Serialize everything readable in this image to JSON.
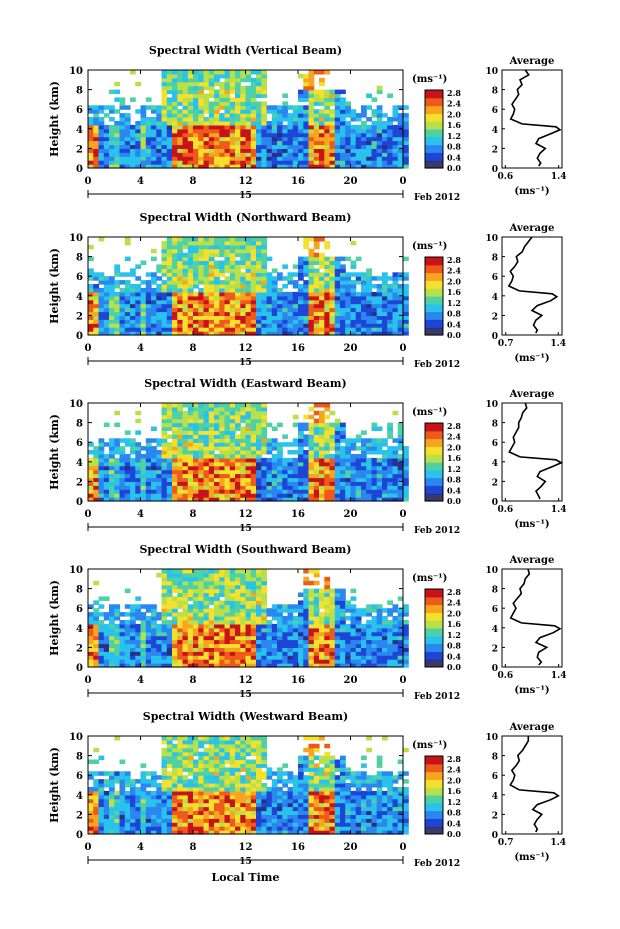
{
  "figure": {
    "xlabel": "Local Time",
    "date_label": "Feb 2012",
    "day_label": "15",
    "units_label": "(ms⁻¹)",
    "average_title": "Average",
    "average_xlabel": "(ms⁻¹)",
    "colorbar_ticks": [
      "2.8",
      "2.4",
      "2.0",
      "1.6",
      "1.2",
      "0.8",
      "0.4",
      "0.0"
    ],
    "colors": [
      "#2a2f8c",
      "#1e46d6",
      "#2c86ef",
      "#28c2ec",
      "#4fd1a6",
      "#b8e04a",
      "#f5e02d",
      "#f7a51f",
      "#ee5a1c",
      "#c8131b"
    ]
  },
  "chart_data": [
    {
      "type": "heatmap",
      "title": "Spectral Width (Vertical Beam)",
      "ylabel": "Height (km)",
      "xlabel": "",
      "xlim": [
        0,
        24
      ],
      "ylim": [
        0,
        10
      ],
      "xticks": [
        "0",
        "4",
        "8",
        "12",
        "16",
        "20",
        "0"
      ],
      "yticks": [
        "0",
        "2",
        "4",
        "6",
        "8",
        "10"
      ],
      "colorbar_range": [
        0.0,
        2.8
      ],
      "average_profile": {
        "title": "Average",
        "xlabel": "(ms⁻¹)",
        "xticks": [
          "0.6",
          "1.4"
        ],
        "yticks": [
          "0",
          "2",
          "4",
          "6",
          "8",
          "10"
        ],
        "heights": [
          0.2,
          0.5,
          1,
          1.5,
          2,
          2.5,
          3,
          3.5,
          3.9,
          4.2,
          4.5,
          5,
          5.5,
          6,
          6.5,
          7,
          7.5,
          8,
          8.5,
          9,
          9.5,
          10
        ],
        "values": [
          1.1,
          1.13,
          1.08,
          1.12,
          1.2,
          1.06,
          1.1,
          1.28,
          1.42,
          1.36,
          0.85,
          0.68,
          0.72,
          0.74,
          0.7,
          0.75,
          0.8,
          0.78,
          0.85,
          0.82,
          0.95,
          0.9
        ]
      }
    },
    {
      "type": "heatmap",
      "title": "Spectral Width (Northward Beam)",
      "ylabel": "Height (km)",
      "xlabel": "",
      "xlim": [
        0,
        24
      ],
      "ylim": [
        0,
        10
      ],
      "xticks": [
        "0",
        "4",
        "8",
        "12",
        "16",
        "20",
        "0"
      ],
      "yticks": [
        "0",
        "2",
        "4",
        "6",
        "8",
        "10"
      ],
      "colorbar_range": [
        0.0,
        2.8
      ],
      "average_profile": {
        "title": "Average",
        "xlabel": "(ms⁻¹)",
        "xticks": [
          "0.7",
          "1.4"
        ],
        "yticks": [
          "0",
          "2",
          "4",
          "6",
          "8",
          "10"
        ],
        "heights": [
          0.2,
          0.5,
          1,
          1.5,
          2,
          2.5,
          3,
          3.5,
          3.9,
          4.2,
          4.5,
          5,
          5.5,
          6,
          6.5,
          7,
          7.5,
          8,
          8.5,
          9,
          9.5,
          10
        ],
        "values": [
          1.1,
          1.12,
          1.07,
          1.1,
          1.18,
          1.05,
          1.12,
          1.3,
          1.38,
          1.32,
          0.88,
          0.74,
          0.78,
          0.8,
          0.76,
          0.82,
          0.86,
          0.84,
          0.92,
          0.95,
          1.0,
          1.05
        ]
      }
    },
    {
      "type": "heatmap",
      "title": "Spectral Width (Eastward Beam)",
      "ylabel": "Height (km)",
      "xlabel": "",
      "xlim": [
        0,
        24
      ],
      "ylim": [
        0,
        10
      ],
      "xticks": [
        "0",
        "4",
        "8",
        "12",
        "16",
        "20",
        "0"
      ],
      "yticks": [
        "0",
        "2",
        "4",
        "6",
        "8",
        "10"
      ],
      "colorbar_range": [
        0.0,
        2.8
      ],
      "average_profile": {
        "title": "Average",
        "xlabel": "(ms⁻¹)",
        "xticks": [
          "0.6",
          "1.4"
        ],
        "yticks": [
          "0",
          "2",
          "4",
          "6",
          "8",
          "10"
        ],
        "heights": [
          0.2,
          0.5,
          1,
          1.5,
          2,
          2.5,
          3,
          3.5,
          3.9,
          4.2,
          4.5,
          5,
          5.5,
          6,
          6.5,
          7,
          7.5,
          8,
          8.5,
          9,
          9.5,
          10
        ],
        "values": [
          1.12,
          1.1,
          1.06,
          1.14,
          1.2,
          1.08,
          1.12,
          1.3,
          1.44,
          1.36,
          0.82,
          0.66,
          0.7,
          0.74,
          0.72,
          0.76,
          0.8,
          0.8,
          0.84,
          0.86,
          0.92,
          0.9
        ]
      }
    },
    {
      "type": "heatmap",
      "title": "Spectral Width (Southward Beam)",
      "ylabel": "Height (km)",
      "xlabel": "",
      "xlim": [
        0,
        24
      ],
      "ylim": [
        0,
        10
      ],
      "xticks": [
        "0",
        "4",
        "8",
        "12",
        "16",
        "20",
        "0"
      ],
      "yticks": [
        "0",
        "2",
        "4",
        "6",
        "8",
        "10"
      ],
      "colorbar_range": [
        0.0,
        2.8
      ],
      "average_profile": {
        "title": "Average",
        "xlabel": "(ms⁻¹)",
        "xticks": [
          "0.6",
          "1.4"
        ],
        "yticks": [
          "0",
          "2",
          "4",
          "6",
          "8",
          "10"
        ],
        "heights": [
          0.2,
          0.5,
          1,
          1.5,
          2,
          2.5,
          3,
          3.5,
          3.9,
          4.2,
          4.5,
          5,
          5.5,
          6,
          6.5,
          7,
          7.5,
          8,
          8.5,
          9,
          9.5,
          10
        ],
        "values": [
          1.1,
          1.14,
          1.08,
          1.1,
          1.22,
          1.06,
          1.12,
          1.32,
          1.42,
          1.34,
          0.84,
          0.68,
          0.72,
          0.76,
          0.72,
          0.78,
          0.84,
          0.82,
          0.88,
          0.9,
          0.96,
          0.94
        ]
      }
    },
    {
      "type": "heatmap",
      "title": "Spectral Width (Westward Beam)",
      "ylabel": "Height (km)",
      "xlabel": "Local Time",
      "xlim": [
        0,
        24
      ],
      "ylim": [
        0,
        10
      ],
      "xticks": [
        "0",
        "4",
        "8",
        "12",
        "16",
        "20",
        "0"
      ],
      "yticks": [
        "0",
        "2",
        "4",
        "6",
        "8",
        "10"
      ],
      "colorbar_range": [
        0.0,
        2.8
      ],
      "average_profile": {
        "title": "Average",
        "xlabel": "(ms⁻¹)",
        "xticks": [
          "0.7",
          "1.4"
        ],
        "yticks": [
          "0",
          "2",
          "4",
          "6",
          "8",
          "10"
        ],
        "heights": [
          0.2,
          0.5,
          1,
          1.5,
          2,
          2.5,
          3,
          3.5,
          3.9,
          4.2,
          4.5,
          5,
          5.5,
          6,
          6.5,
          7,
          7.5,
          8,
          8.5,
          9,
          9.5,
          10
        ],
        "values": [
          1.1,
          1.12,
          1.08,
          1.12,
          1.18,
          1.06,
          1.12,
          1.3,
          1.4,
          1.34,
          0.88,
          0.76,
          0.8,
          0.82,
          0.78,
          0.84,
          0.88,
          0.86,
          0.92,
          0.96,
          1.0,
          1.0
        ]
      }
    }
  ]
}
